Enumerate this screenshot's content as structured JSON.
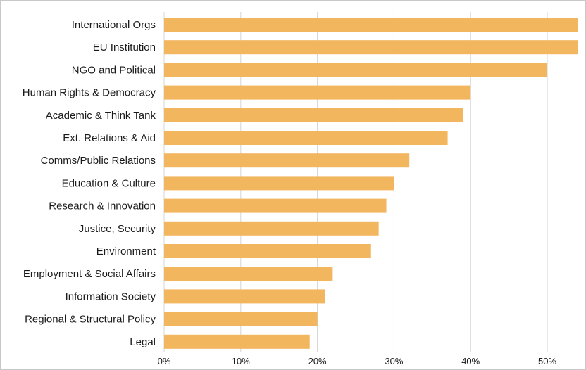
{
  "chart_data": {
    "type": "bar",
    "orientation": "horizontal",
    "categories": [
      "International Orgs",
      "EU Institution",
      "NGO and Political",
      "Human Rights & Democracy",
      "Academic & Think Tank",
      "Ext. Relations & Aid",
      "Comms/Public Relations",
      "Education & Culture",
      "Research & Innovation",
      "Justice, Security",
      "Environment",
      "Employment & Social Affairs",
      "Information Society",
      "Regional & Structural Policy",
      "Legal"
    ],
    "values": [
      54,
      54,
      50,
      40,
      39,
      37,
      32,
      30,
      29,
      28,
      27,
      22,
      21,
      20,
      19
    ],
    "x_ticks": [
      "0%",
      "10%",
      "20%",
      "30%",
      "40%",
      "50%"
    ],
    "x_tick_values": [
      0,
      10,
      20,
      30,
      40,
      50
    ],
    "xlim": [
      0,
      54.5
    ],
    "grid": "vertical",
    "legend": "none",
    "bar_color": "#f2b65f",
    "grid_color": "#d4d4d4",
    "title": "",
    "xlabel": "",
    "ylabel": ""
  }
}
